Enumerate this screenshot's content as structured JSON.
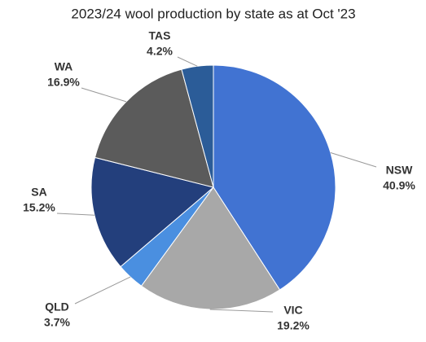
{
  "chart_data": {
    "type": "pie",
    "title": "2023/24 wool production by state as at Oct '23",
    "categories": [
      "NSW",
      "VIC",
      "QLD",
      "SA",
      "WA",
      "TAS"
    ],
    "values": [
      40.9,
      19.2,
      3.7,
      15.2,
      16.9,
      4.2
    ],
    "value_labels": [
      "40.9%",
      "19.2%",
      "3.7%",
      "15.2%",
      "16.9%",
      "4.2%"
    ],
    "colors": [
      "#4173d2",
      "#a8a8a8",
      "#4a8fe0",
      "#233f7c",
      "#5b5b5b",
      "#2b5c98"
    ]
  }
}
